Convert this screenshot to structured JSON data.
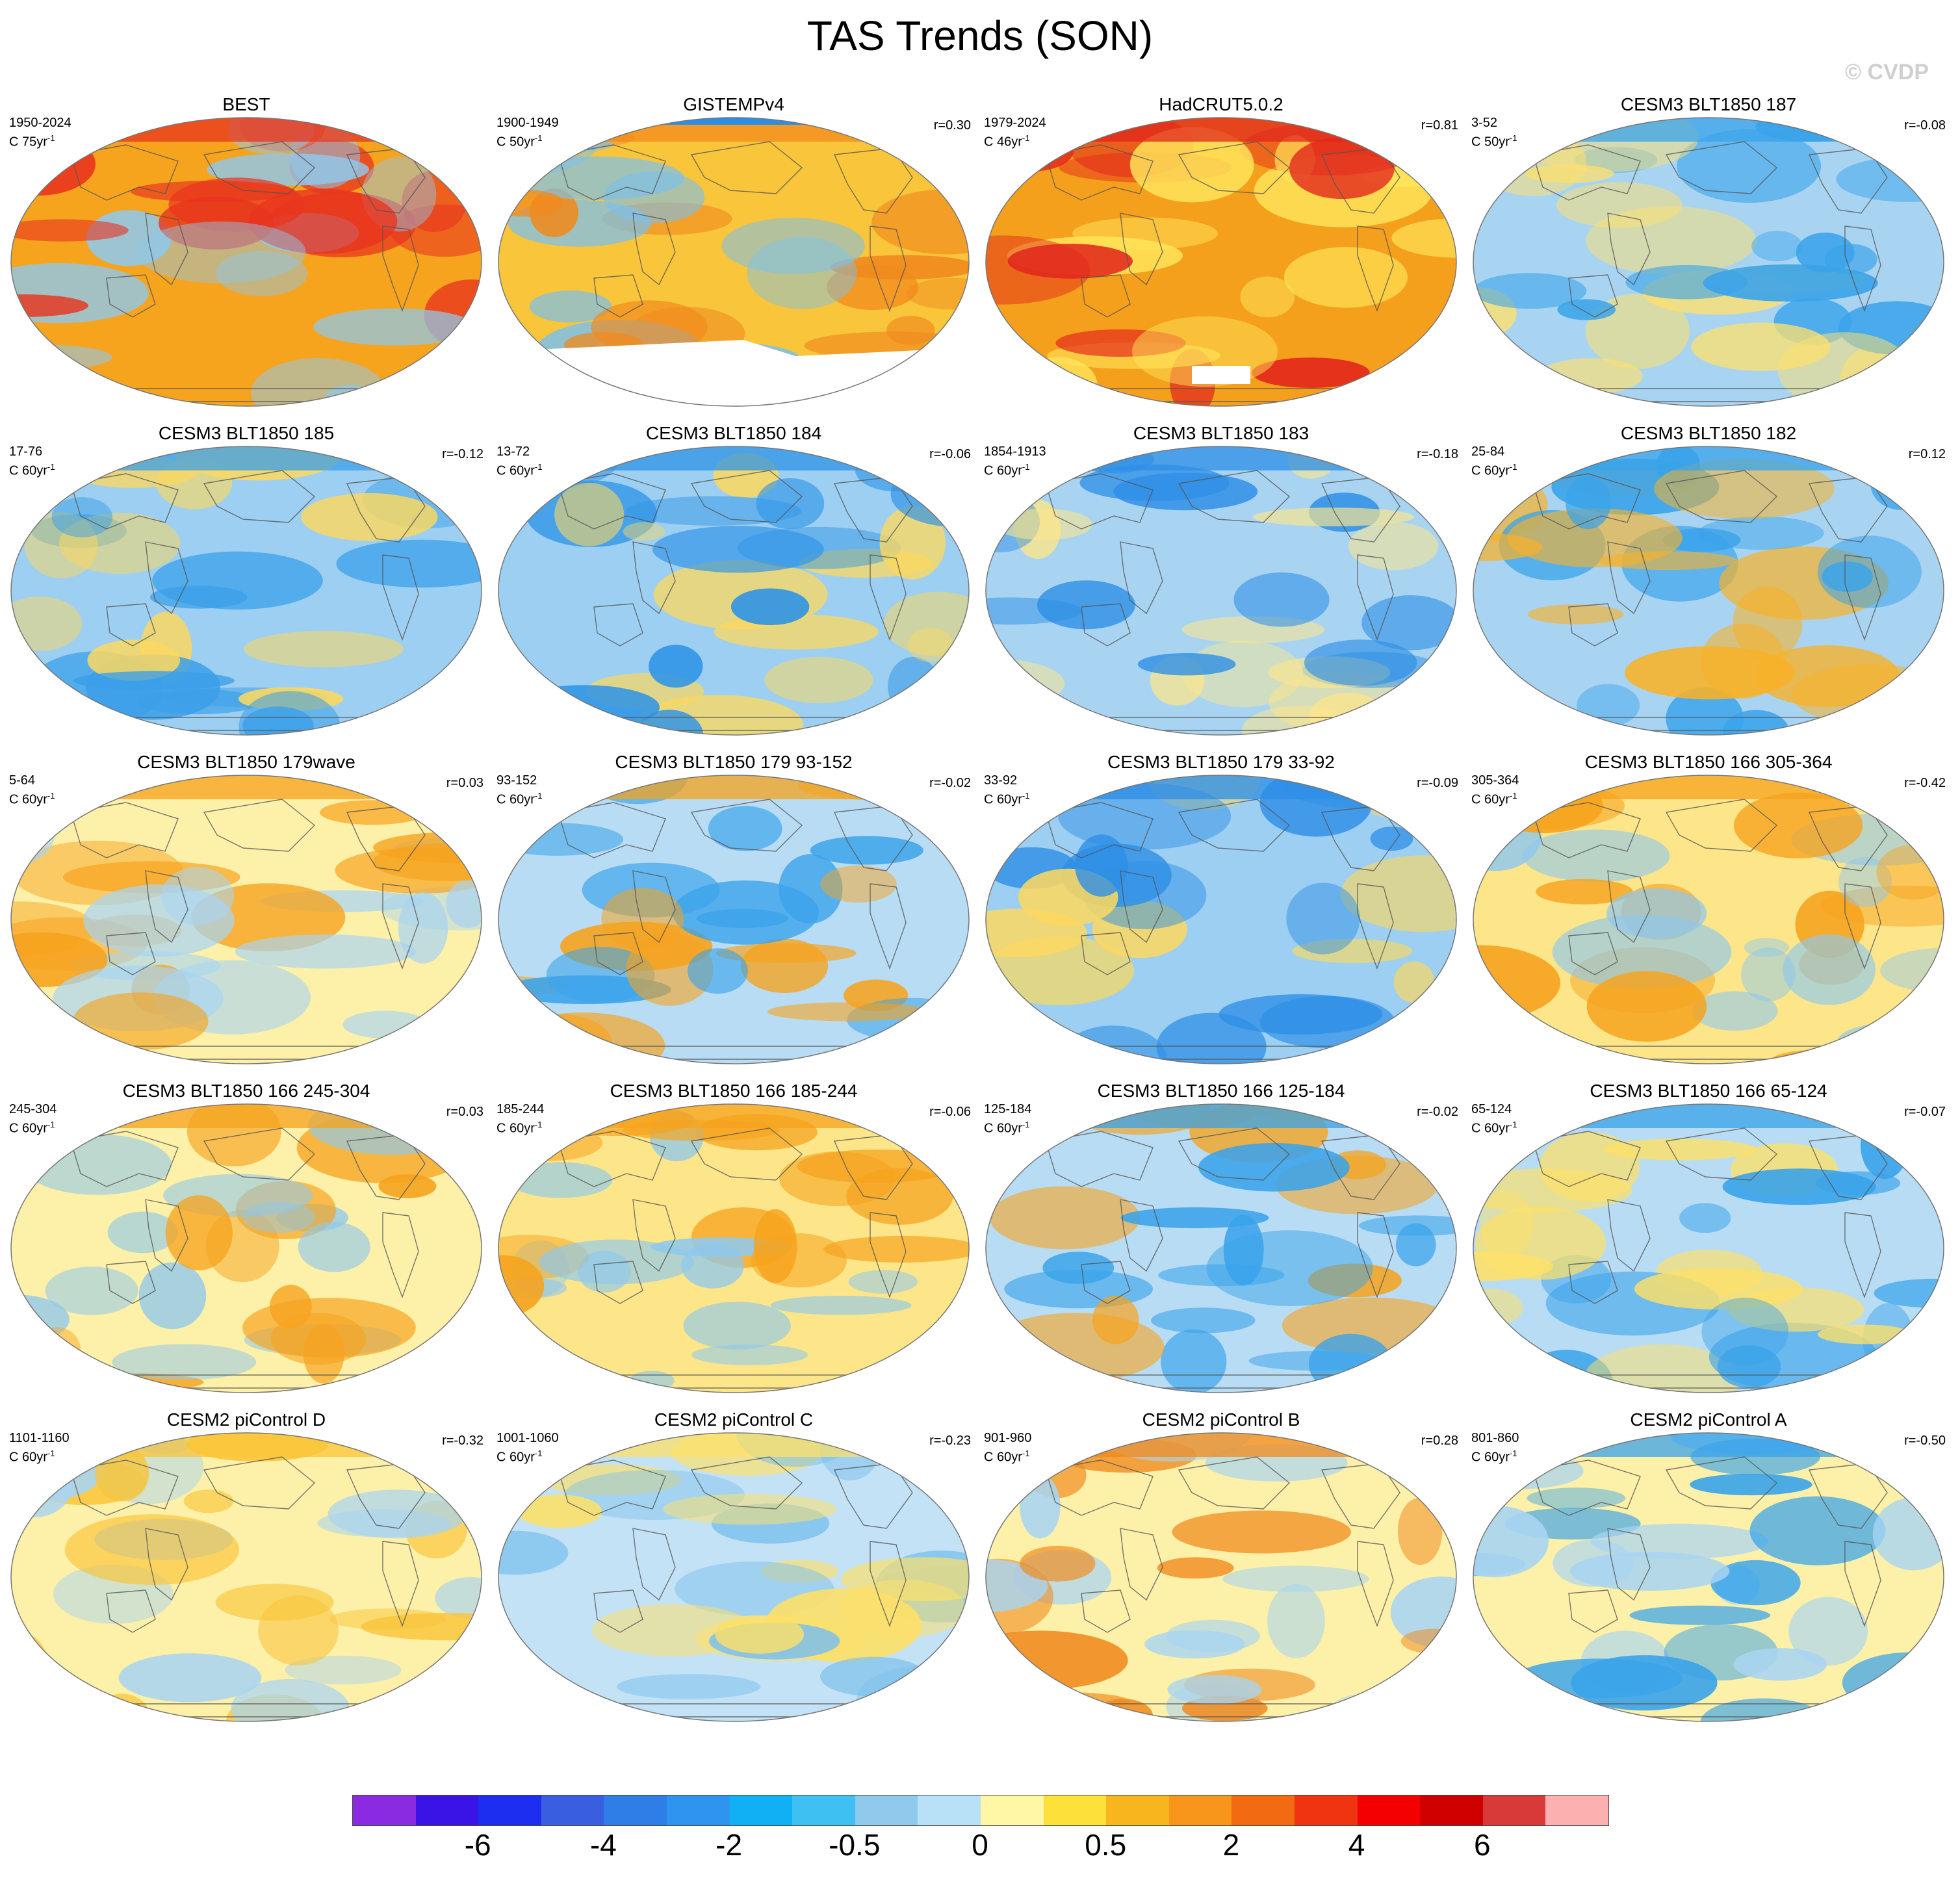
{
  "title": "TAS Trends (SON)",
  "watermark": "© CVDP",
  "panels": [
    {
      "title": "BEST",
      "period": "1950-2024",
      "rate": "C 75yr",
      "rate_exp": "-1",
      "r": "",
      "base": "#f6a31e",
      "accent": "#e8341e",
      "cool": "#8fc8ec",
      "mask": ""
    },
    {
      "title": "GISTEMPv4",
      "period": "1900-1949",
      "rate": "C 50yr",
      "rate_exp": "-1",
      "r": "r=0.30",
      "base": "#f9c53a",
      "accent": "#f08a1e",
      "cool": "#7cc0ec",
      "mask": "south"
    },
    {
      "title": "HadCRUT5.0.2",
      "period": "1979-2024",
      "rate": "C 46yr",
      "rate_exp": "-1",
      "r": "r=0.81",
      "base": "#f4a01c",
      "accent": "#e2261c",
      "cool": "#ffe55a",
      "mask": "patch"
    },
    {
      "title": "CESM3 BLT1850 187",
      "period": "3-52",
      "rate": "C 50yr",
      "rate_exp": "-1",
      "r": "r=-0.08",
      "base": "#a8d4f2",
      "accent": "#3aa3ea",
      "cool": "#fde070",
      "mask": ""
    },
    {
      "title": "CESM3 BLT1850 185",
      "period": "17-76",
      "rate": "C 60yr",
      "rate_exp": "-1",
      "r": "r=-0.12",
      "base": "#9ccff1",
      "accent": "#3a9fe8",
      "cool": "#fbd860",
      "mask": ""
    },
    {
      "title": "CESM3 BLT1850 184",
      "period": "13-72",
      "rate": "C 60yr",
      "rate_exp": "-1",
      "r": "r=-0.06",
      "base": "#9ccff1",
      "accent": "#2f94e6",
      "cool": "#fbd860",
      "mask": ""
    },
    {
      "title": "CESM3 BLT1850 183",
      "period": "1854-1913",
      "rate": "C 60yr",
      "rate_exp": "-1",
      "r": "r=-0.18",
      "base": "#a8d4f2",
      "accent": "#2d8ee6",
      "cool": "#fde68a",
      "mask": ""
    },
    {
      "title": "CESM3 BLT1850 182",
      "period": "25-84",
      "rate": "C 60yr",
      "rate_exp": "-1",
      "r": "r=0.12",
      "base": "#a8d4f2",
      "accent": "#3aa3ea",
      "cool": "#f7b22a",
      "mask": ""
    },
    {
      "title": "CESM3 BLT1850 179wave",
      "period": "5-64",
      "rate": "C 60yr",
      "rate_exp": "-1",
      "r": "r=0.03",
      "base": "#fdf0a8",
      "accent": "#f6a31e",
      "cool": "#a8d4f2",
      "mask": ""
    },
    {
      "title": "CESM3 BLT1850 179 93-152",
      "period": "93-152",
      "rate": "C 60yr",
      "rate_exp": "-1",
      "r": "r=-0.02",
      "base": "#b8dcf4",
      "accent": "#f6a31e",
      "cool": "#3aa3ea",
      "mask": ""
    },
    {
      "title": "CESM3 BLT1850 179 33-92",
      "period": "33-92",
      "rate": "C 60yr",
      "rate_exp": "-1",
      "r": "r=-0.09",
      "base": "#9ccff1",
      "accent": "#2d8ee6",
      "cool": "#fbd860",
      "mask": ""
    },
    {
      "title": "CESM3 BLT1850 166 305-364",
      "period": "305-364",
      "rate": "C 60yr",
      "rate_exp": "-1",
      "r": "r=-0.42",
      "base": "#fde68a",
      "accent": "#f6a31e",
      "cool": "#8fc8ec",
      "mask": ""
    },
    {
      "title": "CESM3 BLT1850 166 245-304",
      "period": "245-304",
      "rate": "C 60yr",
      "rate_exp": "-1",
      "r": "r=0.03",
      "base": "#fdf0a8",
      "accent": "#f6a31e",
      "cool": "#8fc8ec",
      "mask": ""
    },
    {
      "title": "CESM3 BLT1850 166 185-244",
      "period": "185-244",
      "rate": "C 60yr",
      "rate_exp": "-1",
      "r": "r=-0.06",
      "base": "#fde68a",
      "accent": "#f6a31e",
      "cool": "#8fc8ec",
      "mask": ""
    },
    {
      "title": "CESM3 BLT1850 166 125-184",
      "period": "125-184",
      "rate": "C 60yr",
      "rate_exp": "-1",
      "r": "r=-0.02",
      "base": "#b8dcf4",
      "accent": "#3aa3ea",
      "cool": "#f6a31e",
      "mask": ""
    },
    {
      "title": "CESM3 BLT1850 166 65-124",
      "period": "65-124",
      "rate": "C 60yr",
      "rate_exp": "-1",
      "r": "r=-0.07",
      "base": "#b8dcf4",
      "accent": "#3aa3ea",
      "cool": "#fde068",
      "mask": ""
    },
    {
      "title": "CESM2 piControl D",
      "period": "1101-1160",
      "rate": "C 60yr",
      "rate_exp": "-1",
      "r": "r=-0.32",
      "base": "#fdf0a8",
      "accent": "#f9c53a",
      "cool": "#a8d4f2",
      "mask": ""
    },
    {
      "title": "CESM2 piControl C",
      "period": "1001-1060",
      "rate": "C 60yr",
      "rate_exp": "-1",
      "r": "r=-0.23",
      "base": "#c4e2f6",
      "accent": "#fde068",
      "cool": "#7cc0ec",
      "mask": ""
    },
    {
      "title": "CESM2 piControl B",
      "period": "901-960",
      "rate": "C 60yr",
      "rate_exp": "-1",
      "r": "r=0.28",
      "base": "#fdf0a8",
      "accent": "#f08a1e",
      "cool": "#a8d4f2",
      "mask": ""
    },
    {
      "title": "CESM2 piControl A",
      "period": "801-860",
      "rate": "C 60yr",
      "rate_exp": "-1",
      "r": "r=-0.50",
      "base": "#fdf0a8",
      "accent": "#3aa3ea",
      "cool": "#a8d4f2",
      "mask": ""
    }
  ],
  "colorbar": {
    "colors": [
      "#8a2be2",
      "#3a14e6",
      "#1e2ef0",
      "#3a5ee0",
      "#2f7ee8",
      "#2d94f0",
      "#0fb0f4",
      "#3ec0f2",
      "#8fcaec",
      "#b8e0f6",
      "#fff7a6",
      "#fde03a",
      "#f9b51e",
      "#f7961a",
      "#f26a12",
      "#f0340f",
      "#f40000",
      "#cf0000",
      "#d83a3a",
      "#fcb0b0"
    ],
    "labels": [
      "-6",
      "-4",
      "-2",
      "-0.5",
      "0",
      "0.5",
      "2",
      "4",
      "6"
    ],
    "label_boundaries": [
      2,
      4,
      6,
      8,
      10,
      12,
      14,
      16,
      18
    ]
  }
}
